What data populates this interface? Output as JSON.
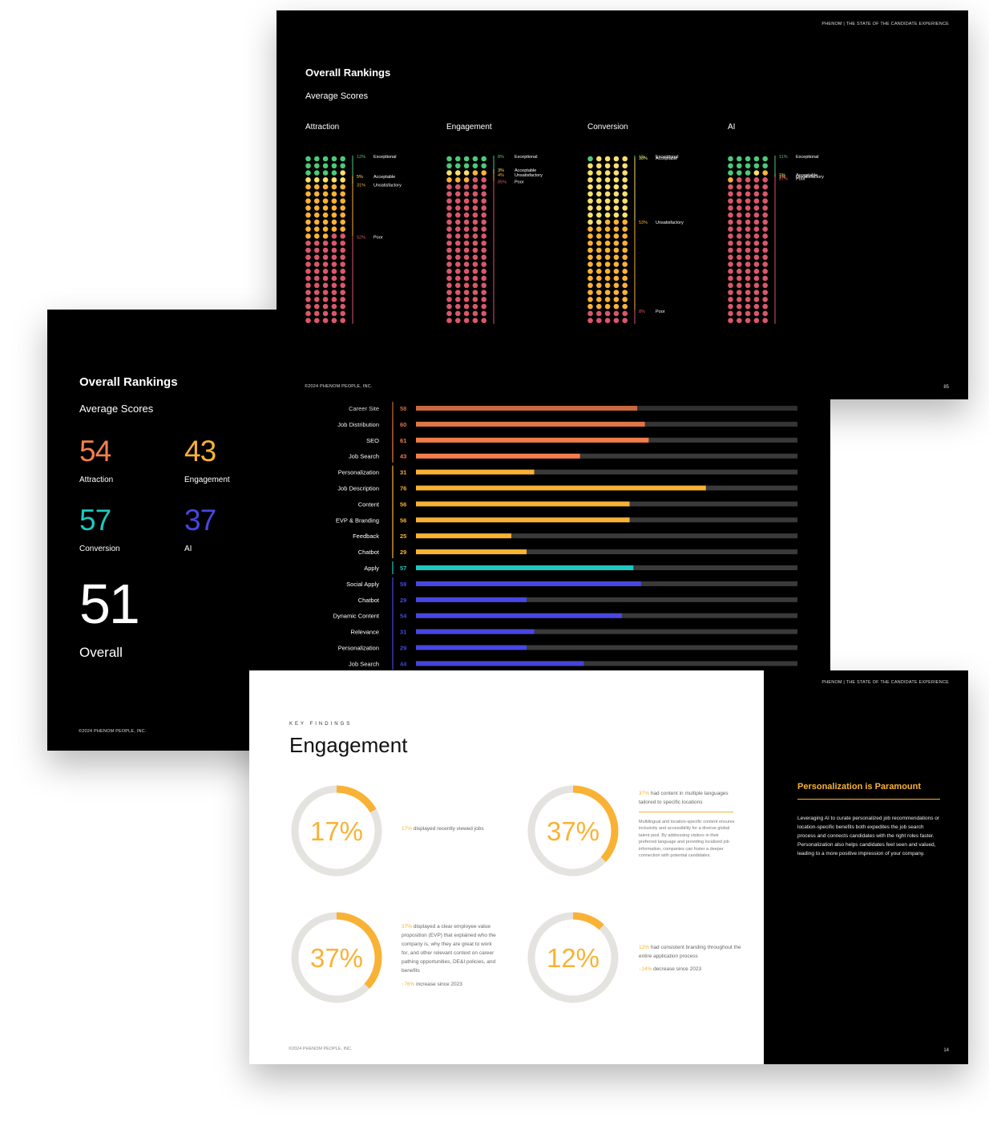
{
  "summary": {
    "title": "Overall Rankings",
    "subtitle": "Average Scores",
    "scores": [
      {
        "value": "54",
        "label": "Attraction",
        "color": "#f47f4c"
      },
      {
        "value": "43",
        "label": "Engagement",
        "color": "#f9b234"
      },
      {
        "value": "57",
        "label": "Conversion",
        "color": "#1cc9c0"
      },
      {
        "value": "37",
        "label": "AI",
        "color": "#4a46e0"
      }
    ],
    "overall_value": "51",
    "overall_label": "Overall",
    "copyright": "©2024 PHENOM PEOPLE, INC."
  },
  "rankings": {
    "header": "PHENOM  |  THE STATE OF THE CANDIDATE EXPERIENCE",
    "title": "Overall Rankings",
    "subtitle": "Average Scores",
    "copyright": "©2024 PHENOM PEOPLE, INC.",
    "page": "85",
    "colors": {
      "Exceptional": "#4cc97a",
      "Acceptable": "#f7e06b",
      "Unsatisfactory": "#f9b234",
      "Poor": "#d9576a"
    }
  },
  "engagement": {
    "header": "PHENOM  |  THE STATE OF THE CANDIDATE EXPERIENCE",
    "kicker": "KEY FINDINGS",
    "title": "Engagement",
    "findings": [
      {
        "pct": 17,
        "label": "17%",
        "hl": "17%",
        "text": "displayed recently viewed jobs"
      },
      {
        "pct": 37,
        "label": "37%",
        "hl": "37%",
        "text": "had content in multiple languages tailored to specific locations",
        "note": "Multilingual and location-specific content ensures inclusivity and accessibility for a diverse global talent pool. By addressing visitors in their preferred language and providing localized job information, companies can foster a deeper connection with potential candidates."
      },
      {
        "pct": 37,
        "label": "37%",
        "hl": "37%",
        "text": "displayed a clear employee value proposition (EVP) that explained who the company is, why they are great to work for, and other relevant context on career pathing opportunities, DE&I policies, and benefits",
        "change_hl": "↑76%",
        "change_text": "increase since 2023"
      },
      {
        "pct": 12,
        "label": "12%",
        "hl": "12%",
        "text": "had consistent branding throughout the entire application process",
        "change_hl": "↓14%",
        "change_text": "decrease since 2023"
      }
    ],
    "panel_title": "Personalization is Paramount",
    "panel_body": "Leveraging AI to curate personalized job recommendations or location-specific benefits both expedites the job search process and connects candidates with the right roles faster. Personalization also helps candidates feel seen and valued, leading to a more positive impression of your company.",
    "copyright": "©2024 PHENOM PEOPLE, INC.",
    "page": "14"
  },
  "chart_data": [
    {
      "type": "bar",
      "orientation": "horizontal",
      "title": "",
      "xlim": [
        0,
        100
      ],
      "categories": [
        "Career Site",
        "Job Distribution",
        "SEO",
        "Job Search",
        "Personalization",
        "Job Description",
        "Content",
        "EVP & Branding",
        "Feedback",
        "Chatbot",
        "Apply",
        "Social Apply",
        "Chatbot",
        "Dynamic Content",
        "Relevance",
        "Personalization",
        "Job Search"
      ],
      "values": [
        58,
        60,
        61,
        43,
        31,
        76,
        56,
        56,
        25,
        29,
        57,
        59,
        29,
        54,
        31,
        29,
        44
      ],
      "groups": [
        "Attraction",
        "Attraction",
        "Attraction",
        "Attraction",
        "Engagement",
        "Engagement",
        "Engagement",
        "Engagement",
        "Engagement",
        "Engagement",
        "Conversion",
        "AI",
        "AI",
        "AI",
        "AI",
        "AI",
        "AI"
      ],
      "group_colors": {
        "Attraction": "#f47f4c",
        "Engagement": "#f9b234",
        "Conversion": "#1cc9c0",
        "AI": "#4a46e0"
      }
    },
    {
      "type": "dot-matrix",
      "title": "Overall Rankings",
      "categories": [
        {
          "name": "Attraction",
          "segments": [
            {
              "pct": 12,
              "label": "12%",
              "rating": "Exceptional"
            },
            {
              "pct": 5,
              "label": "5%",
              "rating": "Acceptable"
            },
            {
              "pct": 31,
              "label": "31%",
              "rating": "Unsatisfactory"
            },
            {
              "pct": 52,
              "label": "52%",
              "rating": "Poor"
            }
          ]
        },
        {
          "name": "Engagement",
          "segments": [
            {
              "pct": 8,
              "label": "8%",
              "rating": "Exceptional"
            },
            {
              "pct": 3,
              "label": "3%",
              "rating": "Acceptable"
            },
            {
              "pct": 4,
              "label": "4%",
              "rating": "Unsatisfactory"
            },
            {
              "pct": 85,
              "label": "85%",
              "rating": "Poor"
            }
          ]
        },
        {
          "name": "Conversion",
          "segments": [
            {
              "pct": 1,
              "label": "1%",
              "rating": "Exceptional"
            },
            {
              "pct": 38,
              "label": "38%",
              "rating": "Acceptable"
            },
            {
              "pct": 53,
              "label": "53%",
              "rating": "Unsatisfactory"
            },
            {
              "pct": 8,
              "label": "8%",
              "rating": "Poor"
            }
          ]
        },
        {
          "name": "AI",
          "segments": [
            {
              "pct": 11,
              "label": "11%",
              "rating": "Exceptional"
            },
            {
              "pct": 1,
              "label": "1%",
              "rating": "Acceptable"
            },
            {
              "pct": 1,
              "label": "1%",
              "rating": "Unsatisfactory"
            },
            {
              "pct": 87,
              "label": "87%",
              "rating": "Poor"
            }
          ]
        }
      ]
    }
  ]
}
